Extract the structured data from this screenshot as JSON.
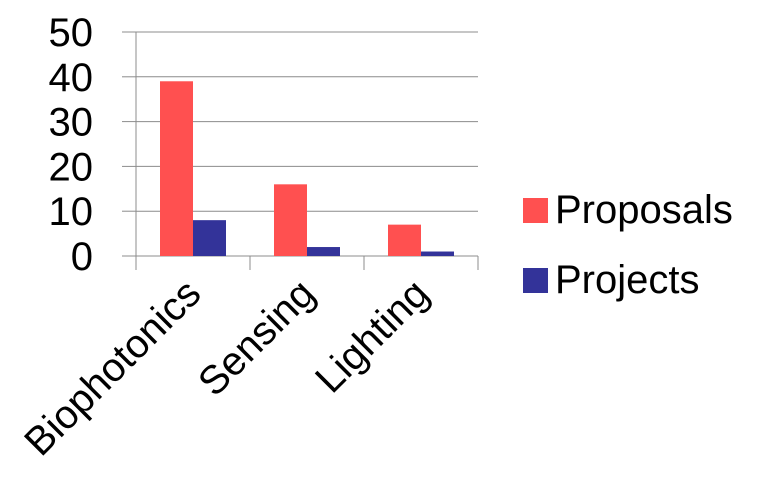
{
  "chart_data": {
    "type": "bar",
    "categories": [
      "Biophotonics",
      "Sensing",
      "Lighting"
    ],
    "series": [
      {
        "name": "Proposals",
        "values": [
          39,
          16,
          7
        ],
        "color": "#ff5050"
      },
      {
        "name": "Projects",
        "values": [
          8,
          2,
          1
        ],
        "color": "#333399"
      }
    ],
    "ylim": [
      0,
      50
    ],
    "yticks": [
      "0",
      "10",
      "20",
      "30",
      "40",
      "50"
    ],
    "grid": true,
    "legend_position": "right"
  }
}
